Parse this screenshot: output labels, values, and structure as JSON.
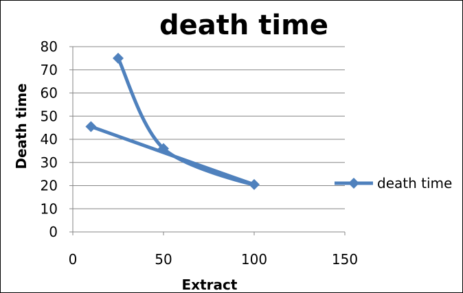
{
  "chart_data": {
    "type": "scatter",
    "title": "death time",
    "xlabel": "Extract",
    "ylabel": "Death time",
    "xlim": [
      0,
      150
    ],
    "ylim": [
      0,
      80
    ],
    "x_ticks": [
      0,
      50,
      100,
      150
    ],
    "y_ticks": [
      0,
      10,
      20,
      30,
      40,
      50,
      60,
      70,
      80
    ],
    "grid": "horizontal",
    "legend_position": "right",
    "series_color": "#4F81BD",
    "series": [
      {
        "name": "death time",
        "line": "smooth",
        "marker": "diamond",
        "points": [
          {
            "x": 10,
            "y": 45.5
          },
          {
            "x": 100,
            "y": 20.5
          },
          {
            "x": 50,
            "y": 36
          },
          {
            "x": 25,
            "y": 75
          }
        ]
      }
    ]
  }
}
